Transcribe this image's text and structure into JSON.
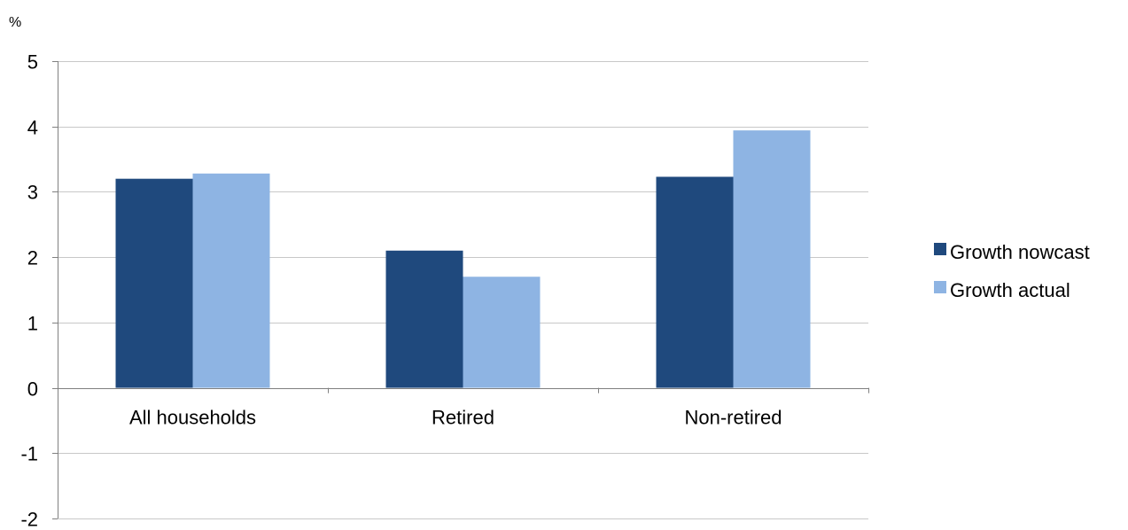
{
  "chart_data": {
    "type": "bar",
    "unit_label": "%",
    "categories": [
      "All households",
      "Retired",
      "Non-retired"
    ],
    "series": [
      {
        "name": "Growth nowcast",
        "values": [
          3.2,
          2.1,
          3.23
        ],
        "color": "#1f497d"
      },
      {
        "name": "Growth actual",
        "values": [
          3.28,
          1.7,
          3.94
        ],
        "color": "#8eb4e3"
      }
    ],
    "ylim": [
      -2,
      5
    ],
    "yticks": [
      5,
      4,
      3,
      2,
      1,
      0,
      -1,
      -2
    ],
    "grid": true,
    "legend_position": "right"
  }
}
